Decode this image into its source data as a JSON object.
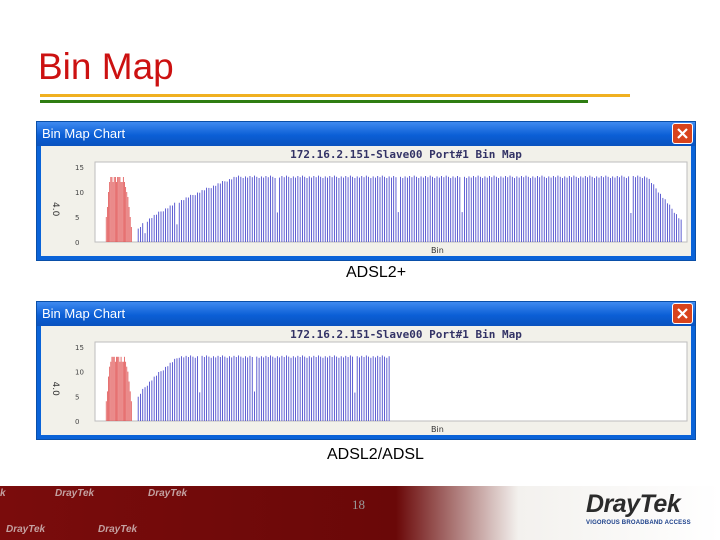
{
  "slide": {
    "title": "Bin Map",
    "page_number": "18",
    "colors": {
      "title": "#cc1111",
      "rule_top": "#f0b020",
      "rule_bottom": "#2e7d12"
    }
  },
  "charts": [
    {
      "window_title": "Bin Map Chart",
      "chart_title": "172.16.2.151-Slave00 Port#1 Bin Map",
      "caption": "ADSL2+",
      "close_icon": "close-icon"
    },
    {
      "window_title": "Bin Map Chart",
      "chart_title": "172.16.2.151-Slave00 Port#1 Bin Map",
      "caption": "ADSL2/ADSL",
      "close_icon": "close-icon"
    }
  ],
  "chart_data": [
    {
      "type": "bar",
      "title": "172.16.2.151-Slave00 Port#1 Bin Map",
      "xlabel": "Bin",
      "ylabel": "4.0",
      "yticks": [
        "15",
        "10",
        "5",
        "0"
      ],
      "ylim": [
        0,
        16
      ],
      "xlim": [
        0,
        512
      ],
      "grid": false,
      "series": [
        {
          "color": "#e05050",
          "x_range": [
            6,
            28
          ],
          "values": [
            5,
            7,
            10,
            12,
            13,
            13,
            12,
            13,
            13,
            12,
            13,
            13,
            13,
            12,
            12,
            13,
            12,
            11,
            10,
            9,
            7,
            5,
            3
          ]
        },
        {
          "color": "#3a3ac8",
          "x_range": [
            33,
            511
          ],
          "plateau": 13,
          "ramp_start": 2,
          "ramp_end_bin": 120,
          "tail_start_bin": 480,
          "tail_end_value": 4,
          "dropouts": [
            40,
            68,
            105,
            156,
            201,
            262,
            318,
            377,
            441,
            466
          ]
        }
      ]
    },
    {
      "type": "bar",
      "title": "172.16.2.151-Slave00 Port#1 Bin Map",
      "xlabel": "Bin",
      "ylabel": "4.0",
      "yticks": [
        "15",
        "10",
        "5",
        "0"
      ],
      "ylim": [
        0,
        16
      ],
      "xlim": [
        0,
        512
      ],
      "grid": false,
      "series": [
        {
          "color": "#e05050",
          "x_range": [
            6,
            28
          ],
          "values": [
            4,
            6,
            9,
            11,
            12,
            13,
            13,
            13,
            12,
            13,
            13,
            13,
            12,
            13,
            12,
            12,
            13,
            12,
            11,
            10,
            8,
            6,
            4
          ]
        },
        {
          "color": "#3a3ac8",
          "x_range": [
            33,
            255
          ],
          "plateau": 13,
          "ramp_start": 4,
          "ramp_end_bin": 70,
          "tail_start_bin": 256,
          "tail_end_value": 13,
          "dropouts": [
            47,
            88,
            136,
            181,
            224
          ]
        }
      ]
    }
  ],
  "footer": {
    "watermark": "DrayTek",
    "logo_text": "DrayTek",
    "logo_tagline": "VIGOROUS BROADBAND ACCESS"
  }
}
